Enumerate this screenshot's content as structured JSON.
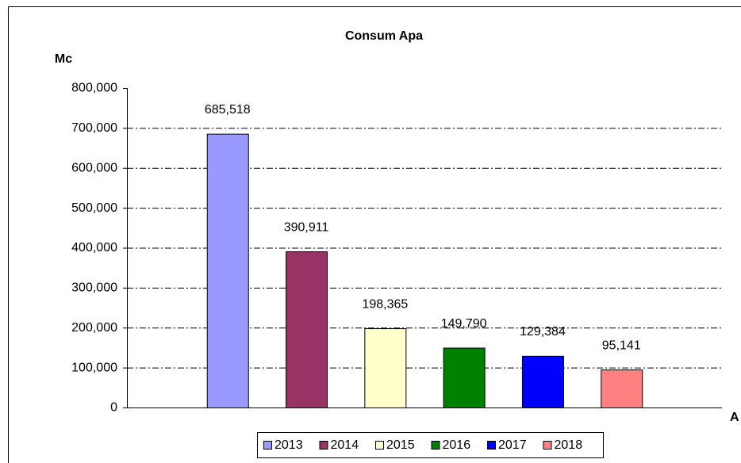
{
  "chart_data": {
    "type": "bar",
    "title": "Consum Apa",
    "y_label": "Mc",
    "x_label": "A",
    "categories": [
      null
    ],
    "series": [
      {
        "name": "2013",
        "color": "#9999ff",
        "values": [
          685518
        ],
        "value_labels": [
          "685,518"
        ]
      },
      {
        "name": "2014",
        "color": "#993366",
        "values": [
          390911
        ],
        "value_labels": [
          "390,911"
        ]
      },
      {
        "name": "2015",
        "color": "#ffffcc",
        "values": [
          198365
        ],
        "value_labels": [
          "198,365"
        ]
      },
      {
        "name": "2016",
        "color": "#008000",
        "values": [
          149790
        ],
        "value_labels": [
          "149,790"
        ]
      },
      {
        "name": "2017",
        "color": "#0000ff",
        "values": [
          129384
        ],
        "value_labels": [
          "129,384"
        ]
      },
      {
        "name": "2018",
        "color": "#ff8080",
        "values": [
          95141
        ],
        "value_labels": [
          "95,141"
        ]
      }
    ],
    "ylim": [
      0,
      800000
    ],
    "yticks": [
      0,
      {
        "value": 100000,
        "label": "100,000"
      },
      {
        "value": 200000,
        "label": "200,000"
      },
      {
        "value": 300000,
        "label": "300,000"
      },
      {
        "value": 400000,
        "label": "400,000"
      },
      {
        "value": 500000,
        "label": "500,000"
      },
      {
        "value": 600000,
        "label": "600,000"
      },
      {
        "value": 700000,
        "label": "700,000"
      },
      {
        "value": 800000,
        "label": "800,000"
      }
    ],
    "grid": true,
    "legend": "bottom"
  }
}
